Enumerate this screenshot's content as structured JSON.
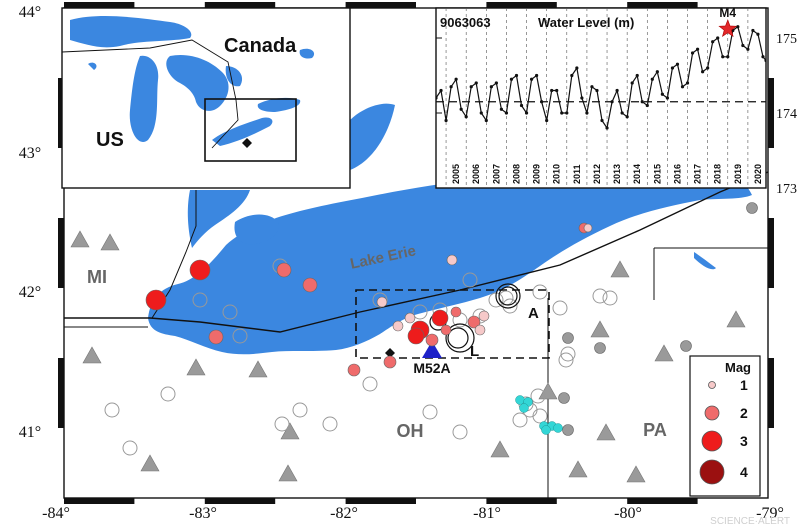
{
  "map": {
    "lon_ticks": [
      "-84°",
      "-83°",
      "-82°",
      "-81°",
      "-80°",
      "-79°"
    ],
    "lat_ticks": [
      "44°",
      "43°",
      "42°",
      "41°"
    ],
    "region_labels": {
      "michigan": "MI",
      "ohio": "OH",
      "pennsylvania": "PA",
      "lake": "Lake Erie"
    },
    "cluster_labels": {
      "a": "A",
      "l": "L"
    },
    "station_label": "M52A",
    "watermark": "SCIENCE·ALERT",
    "colors": {
      "water": "#3b87e0",
      "land": "#ffffff",
      "quake": "#e2272a",
      "station_triangle": "#9a9a9a",
      "station_blue": "#1e22c8",
      "cyan_events": "#33d6d6"
    }
  },
  "inset_locator": {
    "canada_label": "Canada",
    "us_label": "US"
  },
  "legend": {
    "title": "Mag",
    "items": [
      "1",
      "2",
      "3",
      "4"
    ]
  },
  "water_level_inset": {
    "station_id": "9063063",
    "title": "Water Level (m)",
    "event_label": "M4",
    "chart_data": {
      "type": "line",
      "xlabel": "",
      "ylabel": "",
      "x_tick_labels": [
        "2005",
        "2006",
        "2007",
        "2008",
        "2009",
        "2010",
        "2011",
        "2012",
        "2013",
        "2014",
        "2015",
        "2016",
        "2017",
        "2018",
        "2019",
        "2020"
      ],
      "y_tick_labels": [
        "173",
        "174",
        "175"
      ],
      "xlim": [
        2004.5,
        2020.9
      ],
      "ylim": [
        173,
        175.4
      ],
      "mean_level": 174.15,
      "event": {
        "x": 2019.0,
        "y": 175.12,
        "label": "M4"
      },
      "series": [
        {
          "x": [
            2004.5,
            2004.75,
            2005.0,
            2005.25,
            2005.5,
            2005.75,
            2006.0,
            2006.25,
            2006.5,
            2006.75,
            2007.0,
            2007.25,
            2007.5,
            2007.75,
            2008.0,
            2008.25,
            2008.5,
            2008.75,
            2009.0,
            2009.25,
            2009.5,
            2009.75,
            2010.0,
            2010.25,
            2010.5,
            2010.75,
            2011.0,
            2011.25,
            2011.5,
            2011.75,
            2012.0,
            2012.25,
            2012.5,
            2012.75,
            2013.0,
            2013.25,
            2013.5,
            2013.75,
            2014.0,
            2014.25,
            2014.5,
            2014.75,
            2015.0,
            2015.25,
            2015.5,
            2015.75,
            2016.0,
            2016.25,
            2016.5,
            2016.75,
            2017.0,
            2017.25,
            2017.5,
            2017.75,
            2018.0,
            2018.25,
            2018.5,
            2018.75,
            2019.0,
            2019.25,
            2019.5,
            2019.75,
            2020.0,
            2020.25,
            2020.5,
            2020.75,
            2020.9
          ],
          "y": [
            174.2,
            174.3,
            173.9,
            174.35,
            174.45,
            174.05,
            173.95,
            174.35,
            174.4,
            174.0,
            173.9,
            174.35,
            174.4,
            174.05,
            174.0,
            174.45,
            174.5,
            174.1,
            174.0,
            174.45,
            174.5,
            174.15,
            173.9,
            174.3,
            174.3,
            174.0,
            174.0,
            174.5,
            174.6,
            174.2,
            174.0,
            174.35,
            174.3,
            173.9,
            173.8,
            174.15,
            174.3,
            174.0,
            173.95,
            174.4,
            174.5,
            174.15,
            174.1,
            174.45,
            174.55,
            174.25,
            174.2,
            174.6,
            174.65,
            174.35,
            174.4,
            174.8,
            174.85,
            174.55,
            174.6,
            174.95,
            175.0,
            174.75,
            174.75,
            175.1,
            175.15,
            174.9,
            174.85,
            175.1,
            175.05,
            174.75,
            174.7
          ]
        }
      ]
    }
  }
}
